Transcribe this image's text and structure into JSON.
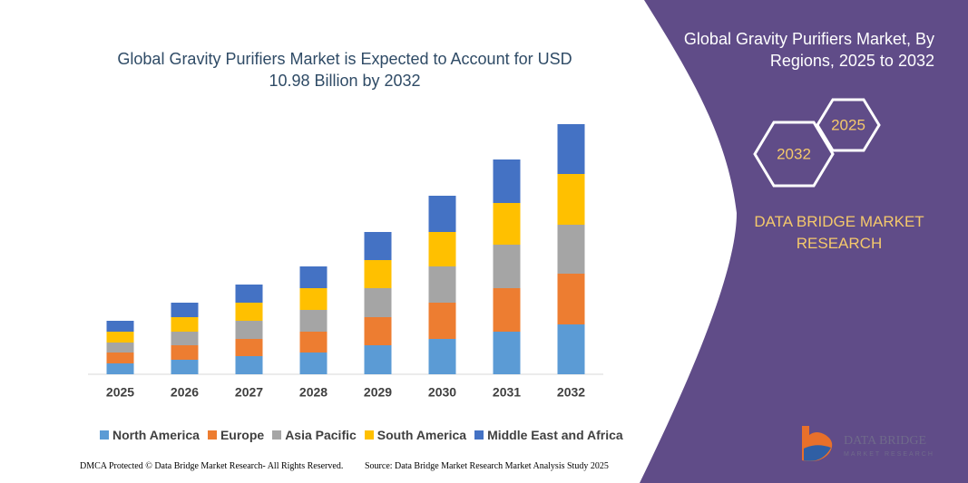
{
  "chart_data": {
    "type": "stacked-bar",
    "title": "Global Gravity Purifiers Market is Expected to Account for USD 10.98 Billion by 2032",
    "categories": [
      "2025",
      "2026",
      "2027",
      "2028",
      "2029",
      "2030",
      "2031",
      "2032"
    ],
    "series": [
      {
        "name": "North America",
        "color": "#5b9bd5",
        "values": [
          12,
          16,
          20,
          24,
          32,
          39,
          47,
          55
        ]
      },
      {
        "name": "Europe",
        "color": "#ed7d31",
        "values": [
          12,
          16,
          19,
          23,
          31,
          40,
          48,
          56
        ]
      },
      {
        "name": "Asia Pacific",
        "color": "#a5a5a5",
        "values": [
          11,
          15,
          20,
          24,
          32,
          40,
          48,
          54
        ]
      },
      {
        "name": "South America",
        "color": "#ffc000",
        "values": [
          12,
          16,
          20,
          24,
          31,
          38,
          46,
          56
        ]
      },
      {
        "name": "Middle East and Africa",
        "color": "#4472c4",
        "values": [
          12,
          16,
          20,
          24,
          31,
          40,
          48,
          55
        ]
      }
    ],
    "ylim": [
      0,
      280
    ]
  },
  "panel": {
    "title": "Global Gravity Purifiers Market, By Regions, 2025 to 2032",
    "hex_start": "2025",
    "hex_end": "2032",
    "brand": "DATA BRIDGE MARKET RESEARCH",
    "logo_name": "DATA BRIDGE",
    "logo_tagline": "MARKET RESEARCH"
  },
  "footer": {
    "left": "DMCA Protected © Data Bridge Market Research- All Rights Reserved.",
    "right": "Source: Data Bridge Market Research Market Analysis Study 2025"
  }
}
